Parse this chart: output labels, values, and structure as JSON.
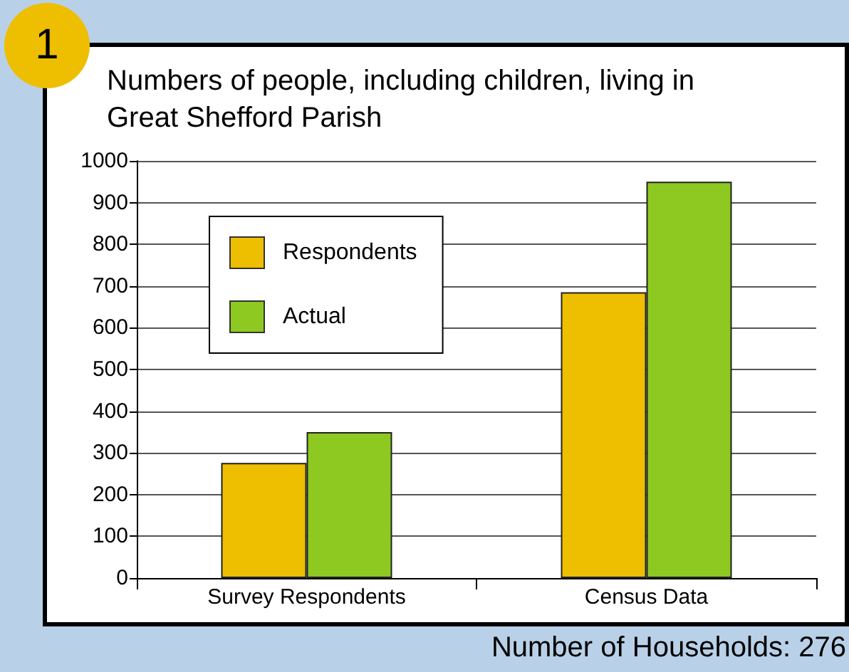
{
  "chart_data": {
    "type": "bar",
    "title": "Numbers of people, including children, living in Great Shefford Parish",
    "categories": [
      "Survey Respondents",
      "Census Data"
    ],
    "series": [
      {
        "name": "Respondents",
        "color": "#eebe00",
        "values": [
          276,
          685
        ]
      },
      {
        "name": "Actual",
        "color": "#8dc920",
        "values": [
          350,
          950
        ]
      }
    ],
    "ylim": [
      0,
      1000
    ],
    "yticks": [
      0,
      100,
      200,
      300,
      400,
      500,
      600,
      700,
      800,
      900,
      1000
    ],
    "grid": "y",
    "legend": "top left",
    "annotations": [
      "1",
      "Number of Households: 276"
    ]
  }
}
